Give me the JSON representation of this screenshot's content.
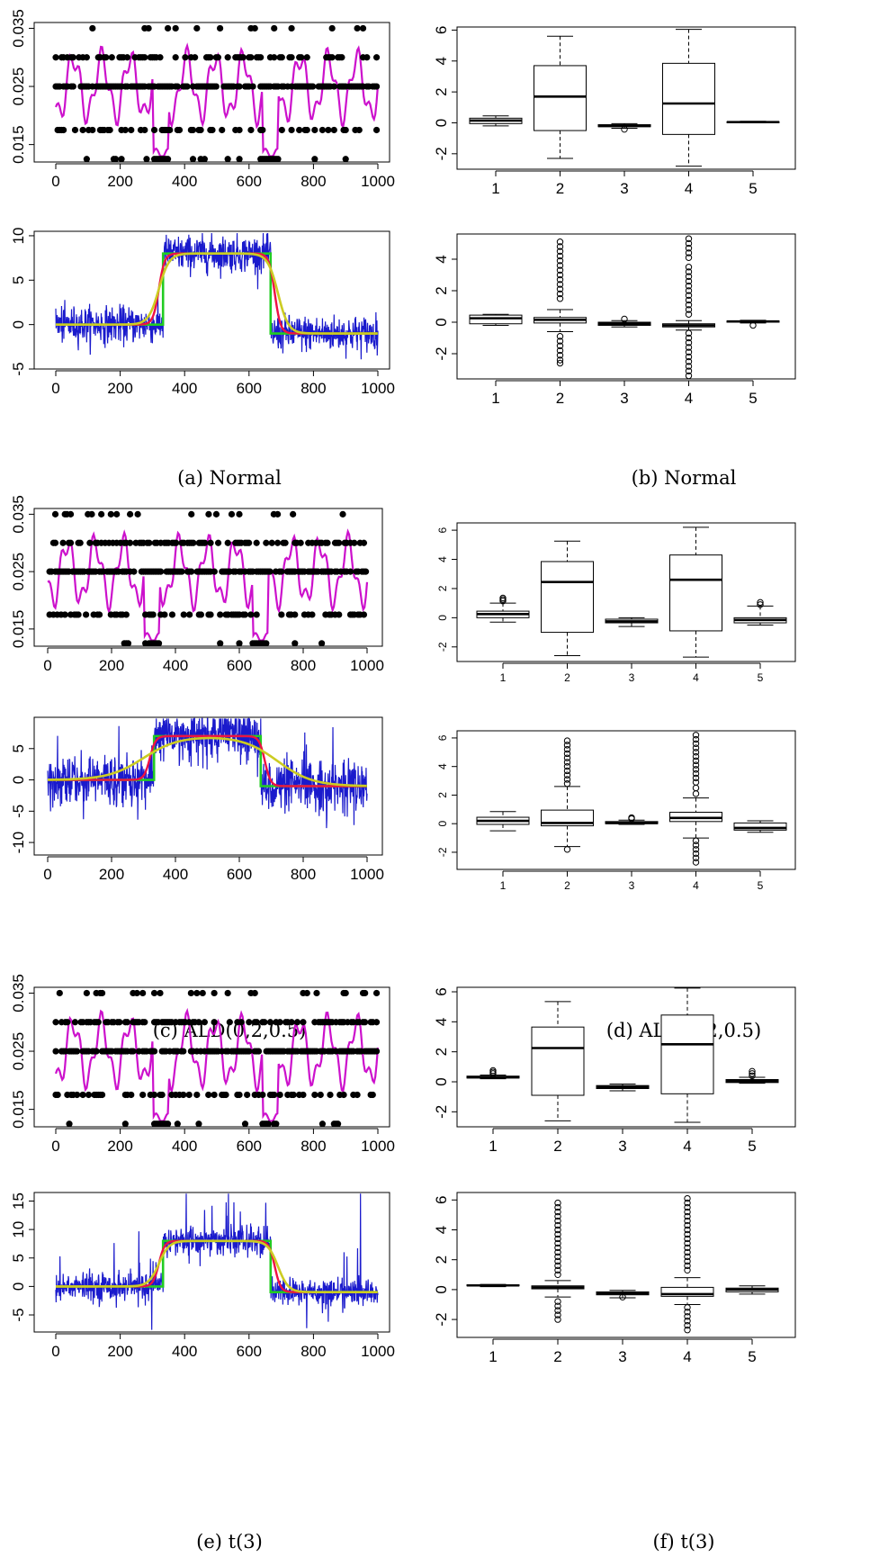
{
  "captions": {
    "a": "(a)  Normal",
    "b": "(b)  Normal",
    "c": "(c)  ALD(0,2,0.5)",
    "d": "(d)  ALD(0,2,0.5)",
    "e": "(e)  t(3)",
    "f": "(f)  t(3)"
  },
  "colors": {
    "points": "#000000",
    "smooth": "#cc11cc",
    "series": "#1a1acc",
    "step": "#22cc22",
    "fit_red": "#ee1144",
    "fit_yellow": "#cccc22",
    "box": "#000000"
  },
  "chart_data": [
    {
      "panel": "a-top",
      "type": "scatter",
      "title": "",
      "xlabel": "",
      "ylabel": "",
      "xlim": [
        0,
        1000
      ],
      "ylim": [
        0.012,
        0.036
      ],
      "xticks": [
        "0",
        "200",
        "400",
        "600",
        "800",
        "1000"
      ],
      "yticks": [
        "0.015",
        "0.025",
        "0.035"
      ],
      "ytick_values": [
        0.015,
        0.025,
        0.035
      ],
      "point_levels": [
        0.0125,
        0.0175,
        0.025,
        0.03,
        0.035
      ],
      "smooth_line_range": [
        0.013,
        0.035
      ],
      "series": [
        {
          "values_desc": "dots at discrete levels",
          "name": ""
        }
      ]
    },
    {
      "panel": "a-bottom",
      "type": "line",
      "title": "",
      "xlabel": "",
      "ylabel": "",
      "xlim": [
        0,
        1000
      ],
      "ylim": [
        -5,
        10.5
      ],
      "xticks": [
        "0",
        "200",
        "400",
        "600",
        "800",
        "1000"
      ],
      "yticks": [
        "-5",
        "0",
        "5",
        "10"
      ],
      "ytick_values": [
        -5,
        0,
        5,
        10
      ],
      "step_function": [
        {
          "x": [
            0,
            333
          ],
          "y": 0
        },
        {
          "x": [
            333,
            667
          ],
          "y": 8
        },
        {
          "x": [
            667,
            1000
          ],
          "y": -1
        }
      ],
      "noise_sd": 1
    },
    {
      "panel": "b-top",
      "type": "box",
      "title": "",
      "xlabel": "",
      "ylabel": "",
      "ylim": [
        -3,
        6.2
      ],
      "categories": [
        "1",
        "2",
        "3",
        "4",
        "5"
      ],
      "yticks": [
        "-2",
        "0",
        "2",
        "4",
        "6"
      ],
      "ytick_values": [
        -2,
        0,
        2,
        4,
        6
      ],
      "boxes": [
        {
          "wlo": -0.2,
          "q1": -0.05,
          "med": 0.15,
          "q3": 0.3,
          "whi": 0.45,
          "out": []
        },
        {
          "wlo": -2.3,
          "q1": -0.5,
          "med": 1.7,
          "q3": 3.7,
          "whi": 5.6,
          "out": []
        },
        {
          "wlo": -0.35,
          "q1": -0.25,
          "med": -0.2,
          "q3": -0.12,
          "whi": -0.05,
          "out": [
            -0.42
          ]
        },
        {
          "wlo": -2.8,
          "q1": -0.75,
          "med": 1.25,
          "q3": 3.85,
          "whi": 6.05,
          "out": []
        },
        {
          "wlo": 0.0,
          "q1": 0.02,
          "med": 0.05,
          "q3": 0.07,
          "whi": 0.1,
          "out": []
        }
      ]
    },
    {
      "panel": "b-bottom",
      "type": "box",
      "title": "",
      "xlabel": "",
      "ylabel": "",
      "ylim": [
        -3.6,
        5.6
      ],
      "categories": [
        "1",
        "2",
        "3",
        "4",
        "5"
      ],
      "yticks": [
        "-2",
        "0",
        "2",
        "4"
      ],
      "ytick_values": [
        -2,
        0,
        2,
        4
      ],
      "boxes": [
        {
          "wlo": -0.2,
          "q1": -0.1,
          "med": 0.25,
          "q3": 0.45,
          "whi": 0.5,
          "out": []
        },
        {
          "wlo": -0.6,
          "q1": -0.05,
          "med": 0.15,
          "q3": 0.3,
          "whi": 0.8,
          "out": [
            5.1,
            4.8,
            4.5,
            4.2,
            3.9,
            3.6,
            3.3,
            3.0,
            2.7,
            2.4,
            2.1,
            1.8,
            1.5,
            -0.9,
            -1.2,
            -1.5,
            -1.8,
            -2.1,
            -2.4,
            -2.6
          ]
        },
        {
          "wlo": -0.3,
          "q1": -0.2,
          "med": -0.1,
          "q3": 0.0,
          "whi": 0.1,
          "out": [
            0.2
          ]
        },
        {
          "wlo": -0.5,
          "q1": -0.3,
          "med": -0.2,
          "q3": -0.1,
          "whi": 0.1,
          "out": [
            5.3,
            5.0,
            4.7,
            4.4,
            4.1,
            3.5,
            3.2,
            2.9,
            2.6,
            2.3,
            2.0,
            1.7,
            1.4,
            1.1,
            0.8,
            0.5,
            -0.7,
            -1.0,
            -1.3,
            -1.6,
            -1.9,
            -2.2,
            -2.5,
            -2.8,
            -3.1,
            -3.4
          ]
        },
        {
          "wlo": -0.05,
          "q1": 0.0,
          "med": 0.05,
          "q3": 0.08,
          "whi": 0.12,
          "out": [
            -0.2
          ]
        }
      ]
    },
    {
      "panel": "c-top",
      "type": "scatter",
      "title": "",
      "xlabel": "",
      "ylabel": "",
      "xlim": [
        0,
        1000
      ],
      "ylim": [
        0.012,
        0.036
      ],
      "xticks": [
        "0",
        "200",
        "400",
        "600",
        "800",
        "1000"
      ],
      "yticks": [
        "0.015",
        "0.025",
        "0.035"
      ],
      "ytick_values": [
        0.015,
        0.025,
        0.035
      ],
      "point_levels": [
        0.0125,
        0.0175,
        0.025,
        0.03,
        0.035
      ]
    },
    {
      "panel": "c-bottom",
      "type": "line",
      "title": "",
      "xlabel": "",
      "ylabel": "",
      "xlim": [
        0,
        1000
      ],
      "ylim": [
        -12,
        10
      ],
      "xticks": [
        "0",
        "200",
        "400",
        "600",
        "800",
        "1000"
      ],
      "yticks": [
        "-10",
        "-5",
        "0",
        "5"
      ],
      "ytick_values": [
        -10,
        -5,
        0,
        5
      ],
      "step_function": [
        {
          "x": [
            0,
            333
          ],
          "y": 0
        },
        {
          "x": [
            333,
            667
          ],
          "y": 7
        },
        {
          "x": [
            667,
            1000
          ],
          "y": -1
        }
      ],
      "noise_sd": 2
    },
    {
      "panel": "d-top",
      "type": "box",
      "title": "",
      "xlabel": "",
      "ylabel": "",
      "ylim": [
        -3,
        6.5
      ],
      "categories": [
        "1",
        "2",
        "3",
        "4",
        "5"
      ],
      "yticks": [
        "-2",
        "0",
        "2",
        "4",
        "6"
      ],
      "ytick_values": [
        -2,
        0,
        2,
        4,
        6
      ],
      "boxes": [
        {
          "wlo": -0.3,
          "q1": 0.0,
          "med": 0.25,
          "q3": 0.45,
          "whi": 1.0,
          "out": [
            1.15,
            1.25,
            1.35
          ]
        },
        {
          "wlo": -2.6,
          "q1": -1.0,
          "med": 2.45,
          "q3": 3.85,
          "whi": 5.25,
          "out": []
        },
        {
          "wlo": -0.6,
          "q1": -0.35,
          "med": -0.25,
          "q3": -0.1,
          "whi": 0.0,
          "out": []
        },
        {
          "wlo": -2.7,
          "q1": -0.9,
          "med": 2.6,
          "q3": 4.3,
          "whi": 6.2,
          "out": []
        },
        {
          "wlo": -0.5,
          "q1": -0.35,
          "med": -0.15,
          "q3": 0.0,
          "whi": 0.8,
          "out": [
            0.9,
            1.05
          ]
        }
      ]
    },
    {
      "panel": "d-bottom",
      "type": "box",
      "title": "",
      "xlabel": "",
      "ylabel": "",
      "ylim": [
        -3.2,
        6.5
      ],
      "categories": [
        "1",
        "2",
        "3",
        "4",
        "5"
      ],
      "yticks": [
        "-2",
        "0",
        "2",
        "4",
        "6"
      ],
      "ytick_values": [
        -2,
        0,
        2,
        4,
        6
      ],
      "boxes": [
        {
          "wlo": -0.5,
          "q1": -0.05,
          "med": 0.2,
          "q3": 0.45,
          "whi": 0.85,
          "out": []
        },
        {
          "wlo": -1.6,
          "q1": -0.15,
          "med": 0.05,
          "q3": 0.95,
          "whi": 2.6,
          "out": [
            5.8,
            5.5,
            5.2,
            4.9,
            4.6,
            4.3,
            4.0,
            3.7,
            3.4,
            3.1,
            2.8,
            -1.8
          ]
        },
        {
          "wlo": -0.05,
          "q1": 0.0,
          "med": 0.05,
          "q3": 0.15,
          "whi": 0.25,
          "out": [
            0.35,
            0.42
          ]
        },
        {
          "wlo": -1.0,
          "q1": 0.15,
          "med": 0.4,
          "q3": 0.8,
          "whi": 1.8,
          "out": [
            6.2,
            5.9,
            5.6,
            5.3,
            5.0,
            4.7,
            4.4,
            4.1,
            3.8,
            3.5,
            3.2,
            2.9,
            2.5,
            2.1,
            -1.2,
            -1.5,
            -1.8,
            -2.1,
            -2.4,
            -2.7
          ]
        },
        {
          "wlo": -0.6,
          "q1": -0.45,
          "med": -0.3,
          "q3": 0.05,
          "whi": 0.2,
          "out": []
        }
      ]
    },
    {
      "panel": "e-top",
      "type": "scatter",
      "title": "",
      "xlabel": "",
      "ylabel": "",
      "xlim": [
        0,
        1000
      ],
      "ylim": [
        0.012,
        0.036
      ],
      "xticks": [
        "0",
        "200",
        "400",
        "600",
        "800",
        "1000"
      ],
      "yticks": [
        "0.015",
        "0.025",
        "0.035"
      ],
      "ytick_values": [
        0.015,
        0.025,
        0.035
      ],
      "point_levels": [
        0.0125,
        0.0175,
        0.025,
        0.03,
        0.035
      ]
    },
    {
      "panel": "e-bottom",
      "type": "line",
      "title": "",
      "xlabel": "",
      "ylabel": "",
      "xlim": [
        0,
        1000
      ],
      "ylim": [
        -8,
        16.5
      ],
      "xticks": [
        "0",
        "200",
        "400",
        "600",
        "800",
        "1000"
      ],
      "yticks": [
        "-5",
        "0",
        "5",
        "10",
        "15"
      ],
      "ytick_values": [
        -5,
        0,
        5,
        10,
        15
      ],
      "step_function": [
        {
          "x": [
            0,
            333
          ],
          "y": 0
        },
        {
          "x": [
            333,
            667
          ],
          "y": 8
        },
        {
          "x": [
            667,
            1000
          ],
          "y": -1
        }
      ],
      "noise_sd": 1.2
    },
    {
      "panel": "f-top",
      "type": "box",
      "title": "",
      "xlabel": "",
      "ylabel": "",
      "ylim": [
        -3,
        6.3
      ],
      "categories": [
        "1",
        "2",
        "3",
        "4",
        "5"
      ],
      "yticks": [
        "-2",
        "0",
        "2",
        "4",
        "6"
      ],
      "ytick_values": [
        -2,
        0,
        2,
        4,
        6
      ],
      "boxes": [
        {
          "wlo": 0.2,
          "q1": 0.25,
          "med": 0.3,
          "q3": 0.38,
          "whi": 0.45,
          "out": [
            0.55,
            0.65,
            0.75
          ]
        },
        {
          "wlo": -2.6,
          "q1": -0.9,
          "med": 2.25,
          "q3": 3.65,
          "whi": 5.35,
          "out": []
        },
        {
          "wlo": -0.6,
          "q1": -0.45,
          "med": -0.35,
          "q3": -0.25,
          "whi": -0.15,
          "out": []
        },
        {
          "wlo": -2.7,
          "q1": -0.8,
          "med": 2.5,
          "q3": 4.45,
          "whi": 6.25,
          "out": []
        },
        {
          "wlo": -0.1,
          "q1": -0.05,
          "med": 0.05,
          "q3": 0.15,
          "whi": 0.3,
          "out": [
            0.4,
            0.55,
            0.7
          ]
        }
      ]
    },
    {
      "panel": "f-bottom",
      "type": "box",
      "title": "",
      "xlabel": "",
      "ylabel": "",
      "ylim": [
        -3.2,
        6.5
      ],
      "categories": [
        "1",
        "2",
        "3",
        "4",
        "5"
      ],
      "yticks": [
        "-2",
        "0",
        "2",
        "4",
        "6"
      ],
      "ytick_values": [
        -2,
        0,
        2,
        4,
        6
      ],
      "boxes": [
        {
          "wlo": 0.2,
          "q1": 0.25,
          "med": 0.28,
          "q3": 0.32,
          "whi": 0.35,
          "out": []
        },
        {
          "wlo": -0.5,
          "q1": 0.05,
          "med": 0.15,
          "q3": 0.25,
          "whi": 0.6,
          "out": [
            5.8,
            5.5,
            5.2,
            4.9,
            4.6,
            4.3,
            4.0,
            3.7,
            3.4,
            3.1,
            2.8,
            2.5,
            2.2,
            1.9,
            1.6,
            1.3,
            1.0,
            -0.8,
            -1.1,
            -1.4,
            -1.7,
            -2.0
          ]
        },
        {
          "wlo": -0.55,
          "q1": -0.35,
          "med": -0.25,
          "q3": -0.15,
          "whi": -0.05,
          "out": [
            -0.5
          ]
        },
        {
          "wlo": -1.0,
          "q1": -0.45,
          "med": -0.3,
          "q3": 0.15,
          "whi": 0.8,
          "out": [
            6.1,
            5.8,
            5.5,
            5.2,
            4.9,
            4.6,
            4.3,
            4.0,
            3.7,
            3.4,
            3.1,
            2.8,
            2.5,
            2.2,
            1.9,
            1.6,
            1.3,
            -1.2,
            -1.5,
            -1.8,
            -2.1,
            -2.4,
            -2.7
          ]
        },
        {
          "wlo": -0.3,
          "q1": -0.15,
          "med": 0.0,
          "q3": 0.1,
          "whi": 0.25,
          "out": []
        }
      ]
    }
  ]
}
